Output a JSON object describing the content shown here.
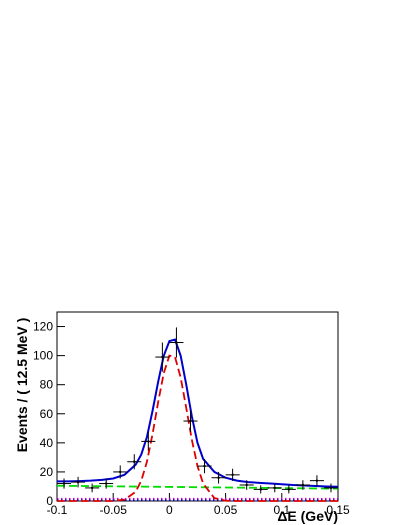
{
  "chart_data": {
    "type": "fit",
    "xlabel": "ΔE (GeV)",
    "ylabel": "Events / ( 12.5 MeV )",
    "xlim": [
      -0.1,
      0.15
    ],
    "ylim": [
      0,
      130
    ],
    "xticks": [
      -0.1,
      -0.05,
      0,
      0.05,
      0.1,
      0.15
    ],
    "yticks": [
      0,
      20,
      40,
      60,
      80,
      100,
      120
    ],
    "data_points": {
      "color": "#000000",
      "x_error": 0.00625,
      "x": [
        -0.09375,
        -0.08125,
        -0.06875,
        -0.05625,
        -0.04375,
        -0.03125,
        -0.01875,
        -0.00625,
        0.00625,
        0.01875,
        0.03125,
        0.04375,
        0.05625,
        0.06875,
        0.08125,
        0.09375,
        0.10625,
        0.11875,
        0.13125,
        0.14375
      ],
      "values": [
        12,
        13,
        9,
        12,
        20,
        27,
        41,
        99,
        109,
        55,
        24,
        16,
        18,
        11,
        8,
        9,
        8,
        11,
        14,
        9
      ],
      "errors": [
        3.5,
        3.6,
        3,
        3.5,
        4.5,
        5.2,
        6.4,
        10,
        10.4,
        7.4,
        4.9,
        4,
        4.2,
        3.3,
        2.8,
        3,
        2.8,
        3.3,
        3.7,
        3
      ]
    },
    "curves": [
      {
        "color": "#00dd00",
        "style": "dashed",
        "x": [
          -0.1,
          0.15
        ],
        "values": [
          10.5,
          8.5
        ]
      },
      {
        "color": "#dd00dd",
        "style": "dotted",
        "x": [
          -0.1,
          0.15
        ],
        "values": [
          1.5,
          1.5
        ]
      },
      {
        "color": "#0000cc",
        "style": "dotted",
        "x": [
          -0.1,
          0.15
        ],
        "values": [
          0.5,
          0.5
        ]
      },
      {
        "color": "#dd0000",
        "style": "dashed",
        "x": [
          -0.1,
          -0.05,
          -0.04,
          -0.03,
          -0.025,
          -0.02,
          -0.015,
          -0.01,
          -0.005,
          0,
          0.005,
          0.01,
          0.015,
          0.02,
          0.025,
          0.03,
          0.04,
          0.05,
          0.06,
          0.15
        ],
        "values": [
          0,
          0,
          0.9,
          6.3,
          14,
          27,
          46,
          68,
          88,
          100,
          99,
          85,
          64,
          42,
          24,
          12,
          2,
          0.2,
          0,
          0
        ]
      },
      {
        "color": "#0000cc",
        "style": "solid",
        "x": [
          -0.1,
          -0.09,
          -0.08,
          -0.07,
          -0.06,
          -0.05,
          -0.04,
          -0.03,
          -0.025,
          -0.02,
          -0.015,
          -0.01,
          -0.005,
          0,
          0.005,
          0.01,
          0.015,
          0.02,
          0.025,
          0.03,
          0.04,
          0.05,
          0.06,
          0.07,
          0.08,
          0.09,
          0.1,
          0.11,
          0.12,
          0.13,
          0.14,
          0.15
        ],
        "values": [
          13.5,
          13.5,
          13.7,
          14,
          14.5,
          15.5,
          18,
          25,
          32,
          44,
          62,
          82,
          100,
          110,
          111,
          100,
          80,
          58,
          40,
          29,
          20,
          16,
          14,
          13,
          12.5,
          12,
          11.5,
          11,
          10.7,
          10.3,
          10,
          9.8
        ]
      }
    ]
  }
}
